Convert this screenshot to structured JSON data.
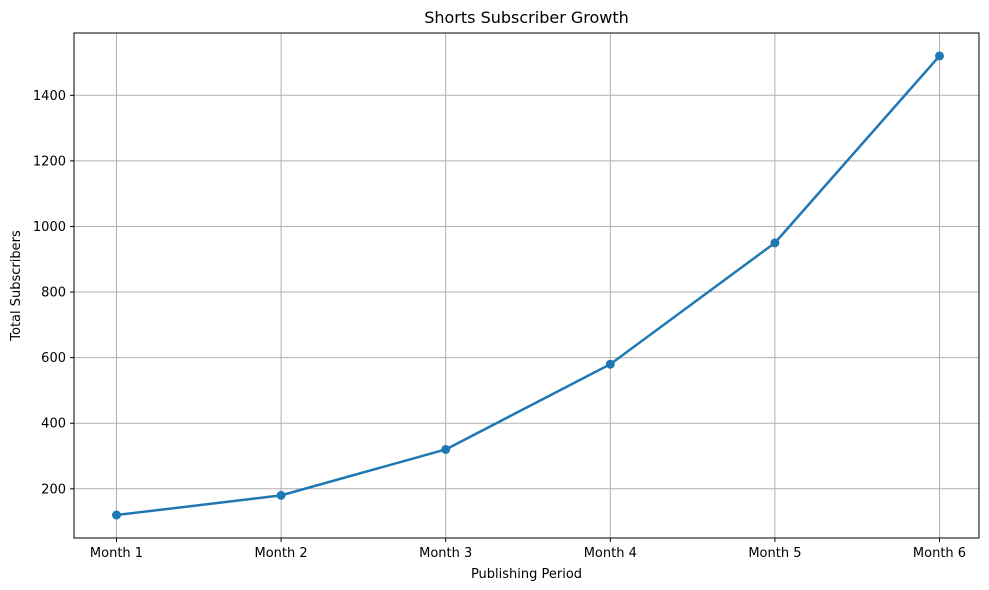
{
  "chart_data": {
    "type": "line",
    "title": "Shorts Subscriber Growth",
    "xlabel": "Publishing Period",
    "ylabel": "Total Subscribers",
    "categories": [
      "Month 1",
      "Month 2",
      "Month 3",
      "Month 4",
      "Month 5",
      "Month 6"
    ],
    "series": [
      {
        "values": [
          120,
          180,
          320,
          580,
          950,
          1520
        ]
      }
    ],
    "yticks": [
      200,
      400,
      600,
      800,
      1000,
      1200,
      1400
    ],
    "ylim": [
      50,
      1590
    ],
    "grid": true,
    "marker": "circle",
    "colors": {
      "line": "#1f77b4",
      "grid": "#b0b0b0",
      "axis": "#000000"
    }
  }
}
